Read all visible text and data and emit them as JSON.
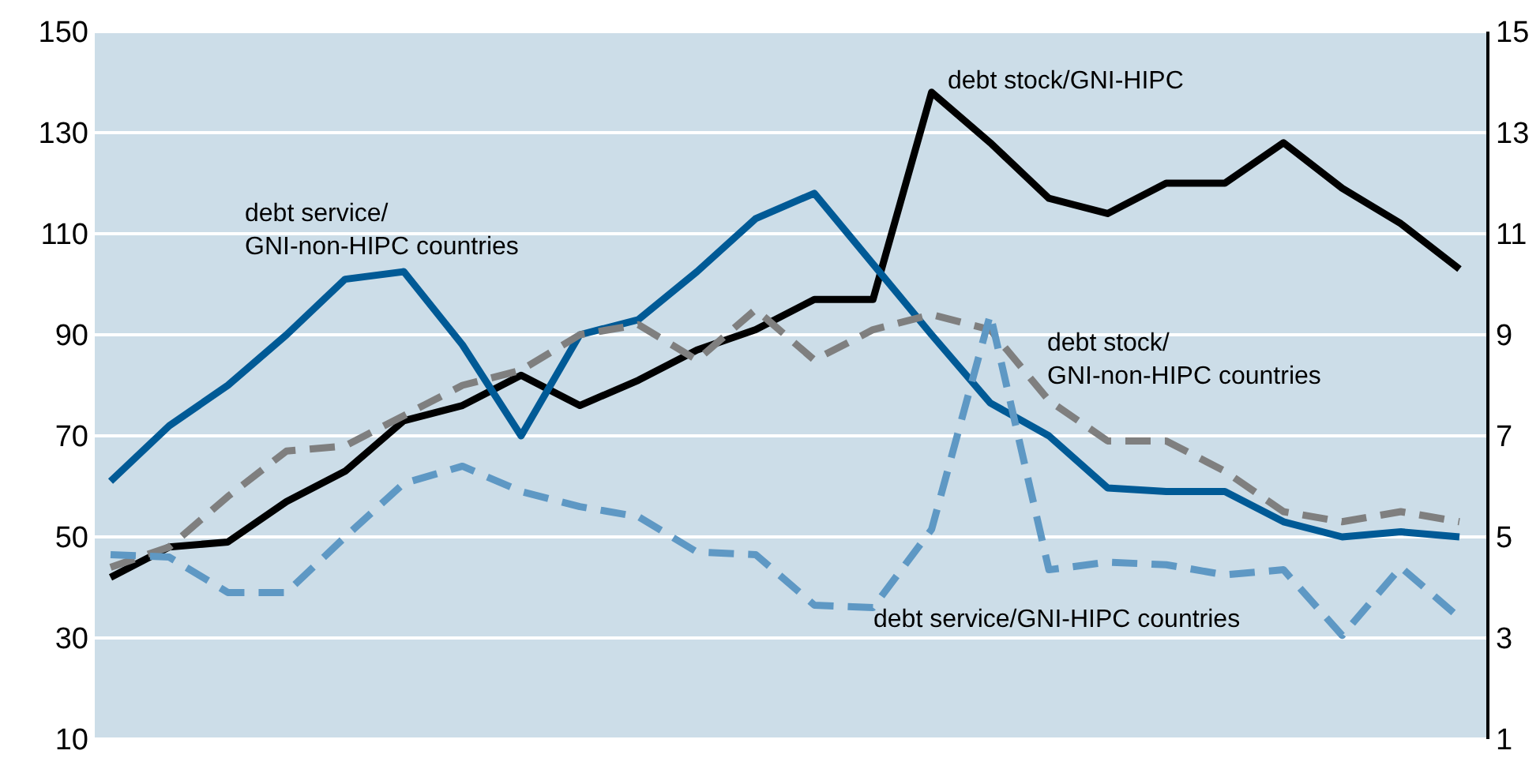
{
  "chart_data": {
    "type": "line",
    "categories": [
      null,
      null,
      null,
      null,
      null,
      null,
      null,
      null,
      null,
      null,
      null,
      null,
      null,
      null,
      null,
      null,
      null,
      null,
      null,
      null,
      null,
      null,
      null,
      null
    ],
    "ylim": [
      10,
      150
    ],
    "yticks": [
      10,
      30,
      50,
      70,
      90,
      110,
      130,
      150
    ],
    "y2lim": [
      1,
      15
    ],
    "y2ticks": [
      1,
      3,
      5,
      7,
      9,
      11,
      13,
      15
    ],
    "grid": "y",
    "marker": "none",
    "series": [
      {
        "name": "debt stock/GNI-HIPC",
        "color": "#000000",
        "line_style": "solid",
        "values": [
          42,
          48,
          49,
          57,
          63,
          73,
          76,
          82,
          76,
          81,
          87,
          91,
          97,
          97,
          138,
          128,
          117,
          114,
          120,
          120,
          128,
          119,
          112,
          103
        ]
      },
      {
        "name": "debt service/\nGNI-non-HIPC countries",
        "color": "#005a96",
        "line_style": "solid",
        "axis": "y2",
        "values": [
          6.1,
          7.2,
          8.0,
          9.0,
          10.1,
          10.25,
          8.8,
          7.0,
          9.0,
          9.3,
          10.25,
          11.3,
          11.8,
          10.4,
          9.0,
          7.65,
          7.0,
          5.97,
          5.9,
          5.9,
          5.3,
          5.0,
          5.1,
          5.0
        ]
      },
      {
        "name": "debt stock/\nGNI-non-HIPC countries",
        "color": "#7f7f7f",
        "line_style": "dashed",
        "values": [
          44,
          48,
          58,
          67,
          68,
          74,
          80,
          83,
          90,
          92,
          85,
          95,
          85,
          91,
          94,
          91,
          77,
          69,
          69,
          63,
          55,
          53,
          55,
          53
        ]
      },
      {
        "name": "debt service/GNI-HIPC countries",
        "color": "#5e98c4",
        "line_style": "dashed",
        "axis": "y2",
        "values": [
          4.65,
          4.6,
          3.9,
          3.9,
          5.0,
          6.06,
          6.4,
          5.9,
          5.6,
          5.4,
          4.7,
          4.65,
          3.65,
          3.6,
          5.15,
          9.4,
          4.35,
          4.5,
          4.45,
          4.25,
          4.35,
          3.05,
          4.4,
          3.4
        ]
      }
    ]
  }
}
